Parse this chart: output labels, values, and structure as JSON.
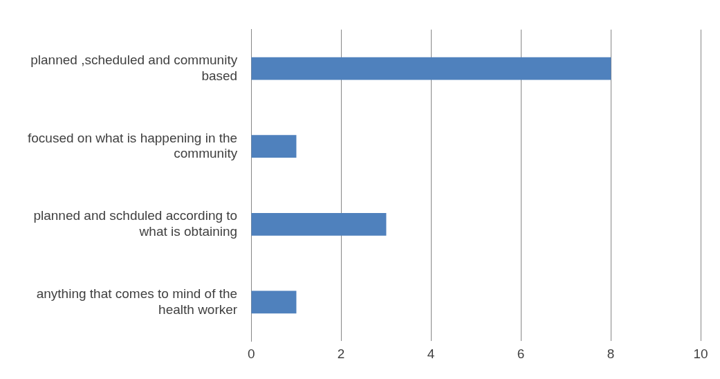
{
  "chart_data": {
    "type": "bar",
    "orientation": "horizontal",
    "categories": [
      "planned ,scheduled and community based",
      "focused on what is happening in the community",
      "planned and schduled according to what is obtaining",
      "anything that comes to mind of the health worker"
    ],
    "values": [
      8,
      1,
      3,
      1
    ],
    "color": "#4f81bd",
    "xlim": [
      0,
      10
    ],
    "xticks": [
      0,
      2,
      4,
      6,
      8,
      10
    ],
    "grid": "x",
    "legend": false
  }
}
